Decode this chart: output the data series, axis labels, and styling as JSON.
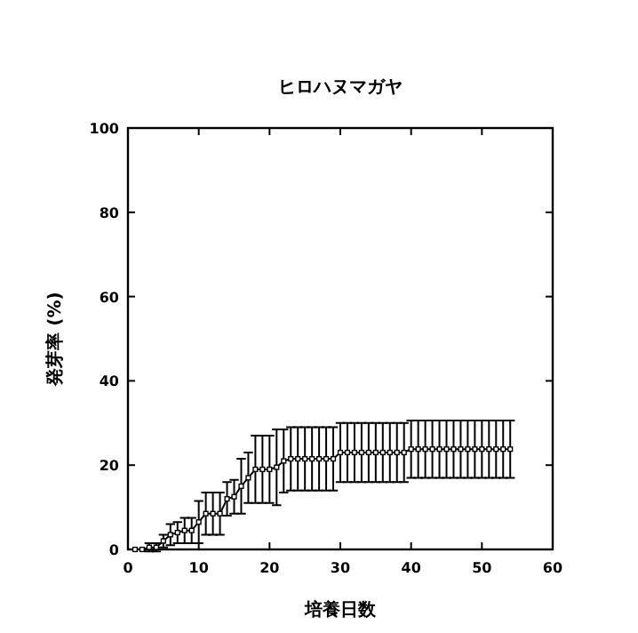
{
  "chart_data": {
    "type": "line",
    "title": "ヒロハヌマガヤ",
    "xlabel": "培養日数",
    "ylabel": "発芽率 (%)",
    "x": [
      1,
      2,
      3,
      4,
      5,
      6,
      7,
      8,
      9,
      10,
      11,
      12,
      13,
      14,
      15,
      16,
      17,
      18,
      19,
      20,
      21,
      22,
      23,
      24,
      25,
      26,
      27,
      28,
      29,
      30,
      31,
      32,
      33,
      34,
      35,
      36,
      37,
      38,
      39,
      40,
      41,
      42,
      43,
      44,
      45,
      46,
      47,
      48,
      49,
      50,
      51,
      52,
      53,
      54
    ],
    "values": [
      0,
      0,
      0.5,
      0.5,
      2,
      3.5,
      4,
      4.5,
      4.5,
      6.5,
      8.5,
      8.5,
      8.5,
      12,
      12.5,
      15,
      17,
      19,
      19,
      19,
      19.5,
      21,
      21.5,
      21.5,
      21.5,
      21.5,
      21.5,
      21.5,
      21.5,
      23,
      23,
      23,
      23,
      23,
      23,
      23,
      23,
      23,
      23,
      23.8,
      23.8,
      23.8,
      23.8,
      23.8,
      23.8,
      23.8,
      23.8,
      23.8,
      23.8,
      23.8,
      23.8,
      23.8,
      23.8,
      23.8
    ],
    "errors": [
      0,
      0,
      1,
      1,
      1.5,
      2.5,
      2.5,
      3,
      3,
      5,
      5,
      5,
      5,
      4,
      4,
      6.5,
      6,
      8,
      8,
      8,
      9,
      7.5,
      7.5,
      7.5,
      7.5,
      7.5,
      7.5,
      7.5,
      7.5,
      7,
      7,
      7,
      7,
      7,
      7,
      7,
      7,
      7,
      7,
      6.8,
      6.8,
      6.8,
      6.8,
      6.8,
      6.8,
      6.8,
      6.8,
      6.8,
      6.8,
      6.8,
      6.8,
      6.8,
      6.8,
      6.8
    ],
    "color": "#000000",
    "marker": "square",
    "xlim": [
      0,
      60
    ],
    "xticks": [
      0,
      10,
      20,
      30,
      40,
      50,
      60
    ],
    "ylim": [
      0,
      100
    ],
    "yticks": [
      0,
      20,
      40,
      60,
      80,
      100
    ]
  }
}
